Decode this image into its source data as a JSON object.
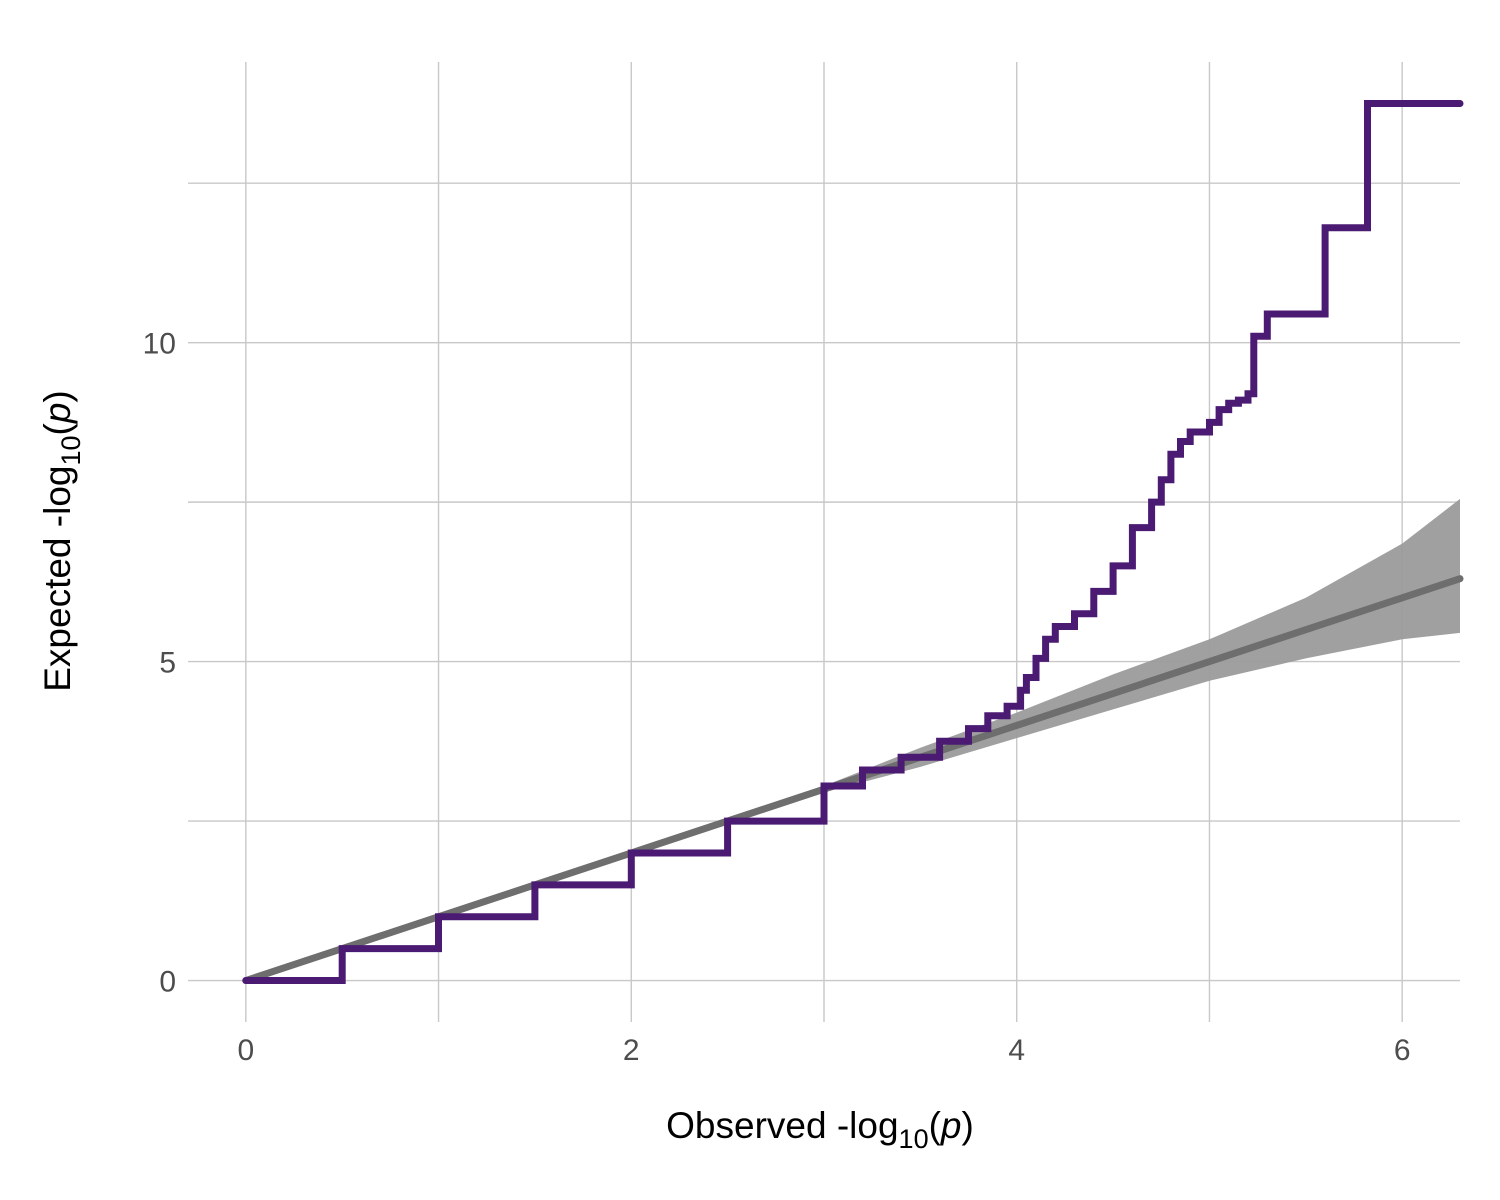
{
  "chart_data": {
    "type": "line",
    "xlabel": {
      "pre": "Observed -log",
      "sub": "10",
      "mid": "(",
      "var": "p",
      "post": ")"
    },
    "ylabel": {
      "pre": "Expected -log",
      "sub": "10",
      "mid": "(",
      "var": "p",
      "post": ")"
    },
    "xlim": [
      -0.3,
      6.3
    ],
    "ylim": [
      -0.65,
      14.4
    ],
    "x_ticks": [
      0,
      2,
      4,
      6
    ],
    "y_ticks": [
      0,
      5,
      10
    ],
    "x_tick_labels": [
      "0",
      "2",
      "4",
      "6"
    ],
    "y_tick_labels": [
      "0",
      "5",
      "10"
    ],
    "grid": true,
    "legend": "none",
    "colors": {
      "series": "#4b1a73",
      "reference": "#6e6e6e",
      "band": "#9b9b9b",
      "grid": "#c8c8c8"
    },
    "series": [
      {
        "style": "step",
        "x": [
          0,
          0.5,
          1.0,
          1.5,
          2.0,
          2.5,
          3.0,
          3.2,
          3.4,
          3.6,
          3.75,
          3.85,
          3.95,
          4.02,
          4.05,
          4.1,
          4.15,
          4.2,
          4.3,
          4.4,
          4.5,
          4.6,
          4.7,
          4.75,
          4.8,
          4.85,
          4.9,
          5.0,
          5.05,
          5.1,
          5.15,
          5.2,
          5.23,
          5.3,
          5.6,
          5.82,
          6.3
        ],
        "y": [
          0,
          0.5,
          1.0,
          1.5,
          2.0,
          2.5,
          3.05,
          3.3,
          3.5,
          3.75,
          3.95,
          4.15,
          4.3,
          4.55,
          4.75,
          5.05,
          5.35,
          5.55,
          5.75,
          6.1,
          6.5,
          7.1,
          7.5,
          7.85,
          8.25,
          8.45,
          8.6,
          8.75,
          8.95,
          9.05,
          9.1,
          9.2,
          10.1,
          10.45,
          11.8,
          13.75,
          13.75
        ]
      },
      {
        "style": "reference",
        "x": [
          0,
          6.3
        ],
        "y": [
          0,
          6.3
        ],
        "band": {
          "x": [
            3.0,
            3.5,
            4.0,
            4.5,
            5.0,
            5.5,
            6.0,
            6.3
          ],
          "lower": [
            2.95,
            3.35,
            3.8,
            4.25,
            4.7,
            5.05,
            5.35,
            5.45
          ],
          "upper": [
            3.05,
            3.65,
            4.2,
            4.8,
            5.35,
            6.0,
            6.85,
            7.55
          ]
        }
      }
    ]
  }
}
